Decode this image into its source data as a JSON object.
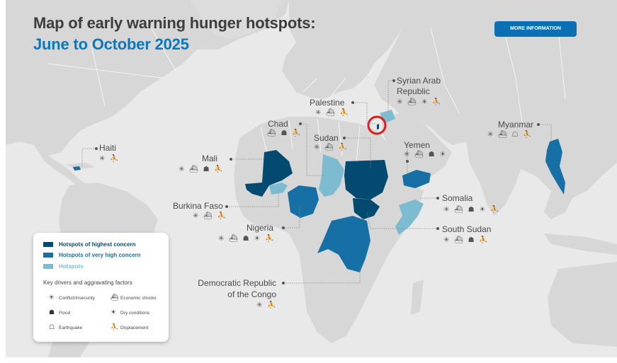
{
  "header": {
    "title": "Map of early warning hunger hotspots:",
    "subtitle": "June to October 2025",
    "more_info_button": "MORE INFORMATION"
  },
  "colors": {
    "highest": "#034a70",
    "very_high": "#1670a6",
    "hotspot": "#7cbbd0",
    "land": "#d7d7d7",
    "ocean": "#e9e9e9",
    "title": "#3d3d3d",
    "subtitle": "#0a78bf",
    "highlight_circle": "#e01b1b"
  },
  "countries": [
    {
      "name": "Haiti",
      "concern": "very_high",
      "drivers": [
        "conflict",
        "displacement"
      ]
    },
    {
      "name": "Mali",
      "concern": "highest",
      "drivers": [
        "conflict",
        "economic",
        "flood",
        "displacement"
      ]
    },
    {
      "name": "Burkina Faso",
      "concern": "hotspot",
      "drivers": [
        "conflict",
        "economic",
        "displacement"
      ]
    },
    {
      "name": "Nigeria",
      "concern": "very_high",
      "drivers": [
        "conflict",
        "economic",
        "flood",
        "dry",
        "displacement"
      ]
    },
    {
      "name": "Chad",
      "concern": "hotspot",
      "drivers": [
        "economic",
        "flood",
        "displacement"
      ]
    },
    {
      "name": "Sudan",
      "concern": "highest",
      "drivers": [
        "conflict",
        "economic",
        "displacement"
      ]
    },
    {
      "name": "Palestine",
      "concern": "highest",
      "drivers": [
        "conflict",
        "economic",
        "displacement"
      ]
    },
    {
      "name": "Syrian Arab Republic",
      "concern": "hotspot",
      "drivers": [
        "conflict",
        "economic",
        "dry",
        "displacement"
      ]
    },
    {
      "name": "Yemen",
      "concern": "very_high",
      "drivers": [
        "conflict",
        "economic",
        "flood",
        "dry"
      ]
    },
    {
      "name": "Myanmar",
      "concern": "very_high",
      "drivers": [
        "conflict",
        "economic",
        "earthquake",
        "displacement"
      ]
    },
    {
      "name": "Somalia",
      "concern": "hotspot",
      "drivers": [
        "conflict",
        "economic",
        "flood",
        "dry",
        "displacement"
      ]
    },
    {
      "name": "South Sudan",
      "concern": "highest",
      "drivers": [
        "conflict",
        "economic",
        "flood",
        "displacement"
      ]
    },
    {
      "name": "Democratic Republic of the Congo",
      "concern": "very_high",
      "drivers": [
        "conflict",
        "displacement"
      ]
    }
  ],
  "labels": {
    "haiti": "Haiti",
    "mali": "Mali",
    "burkina": "Burkina Faso",
    "nigeria": "Nigeria",
    "chad": "Chad",
    "sudan": "Sudan",
    "palestine": "Palestine",
    "syria_1": "Syrian Arab",
    "syria_2": "Republic",
    "yemen": "Yemen",
    "myanmar": "Myanmar",
    "somalia": "Somalia",
    "south_sudan": "South Sudan",
    "drc_1": "Democratic Republic",
    "drc_2": "of the Congo"
  },
  "legend": {
    "concern_levels": [
      {
        "label": "Hotspots of highest concern",
        "color": "#034a70"
      },
      {
        "label": "Hotspots of very high concern",
        "color": "#1670a6"
      },
      {
        "label": "Hotspots",
        "color": "#7cbbd0"
      }
    ],
    "drivers_title": "Key drivers and aggravating factors",
    "drivers": [
      {
        "key": "conflict",
        "label": "Conflict/insecurity",
        "icon": "conflict-icon"
      },
      {
        "key": "economic",
        "label": "Economic shocks",
        "icon": "economic-shock-icon"
      },
      {
        "key": "flood",
        "label": "Flood",
        "icon": "flood-icon"
      },
      {
        "key": "dry",
        "label": "Dry conditions",
        "icon": "dry-conditions-icon"
      },
      {
        "key": "earthquake",
        "label": "Earthquake",
        "icon": "earthquake-icon"
      },
      {
        "key": "displacement",
        "label": "Displacement",
        "icon": "displacement-icon"
      }
    ]
  }
}
